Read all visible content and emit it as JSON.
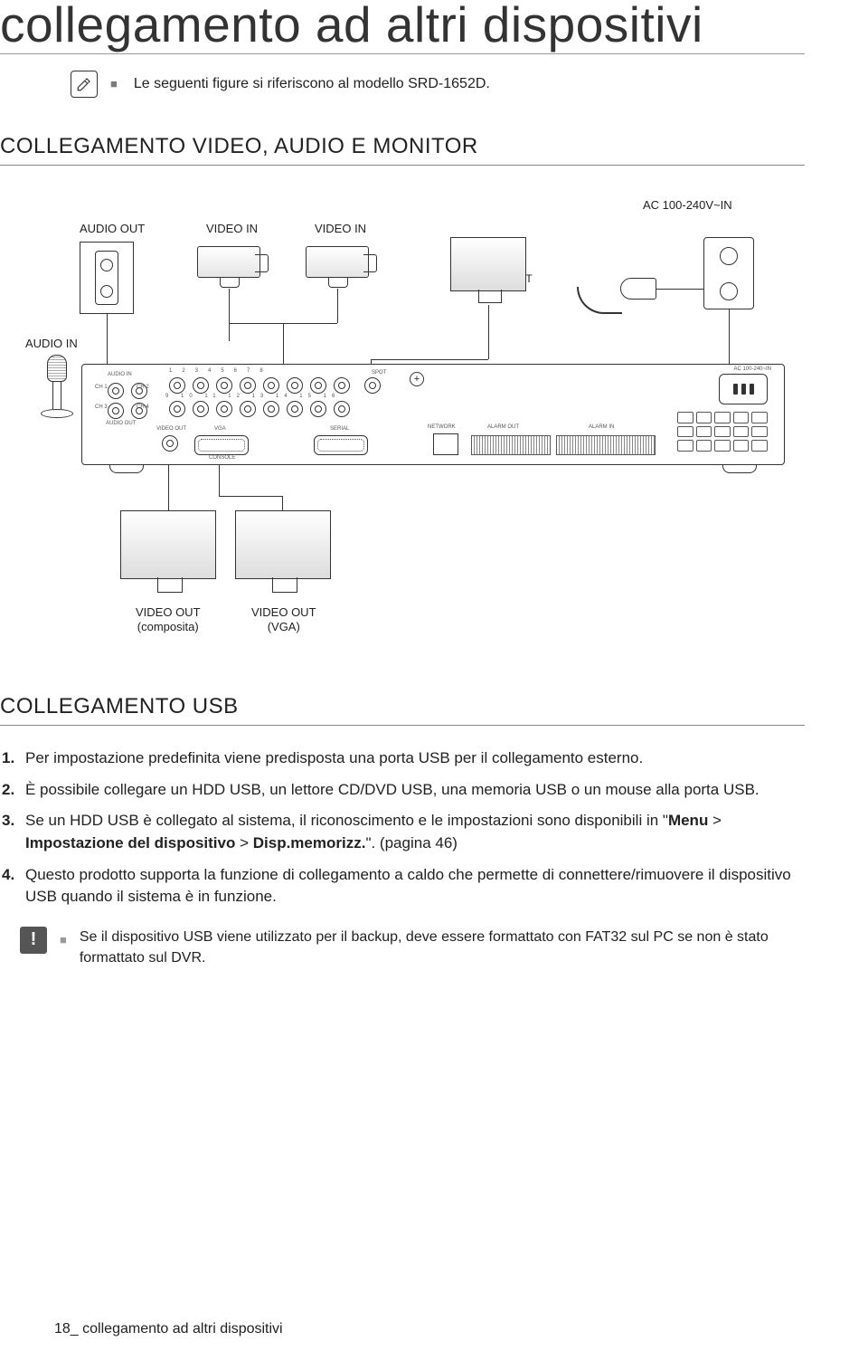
{
  "page": {
    "title": "collegamento ad altri dispositivi",
    "note_text": "Le seguenti figure si riferiscono al modello SRD-1652D.",
    "footer_page": "18_",
    "footer_text": "collegamento ad altri dispositivi"
  },
  "section1": {
    "heading": "COLLEGAMENTO VIDEO, AUDIO E MONITOR",
    "labels": {
      "audio_out": "AUDIO OUT",
      "video_in_1": "VIDEO IN",
      "video_in_2": "VIDEO IN",
      "spot": "SPOT",
      "ac_in": "AC 100-240V~IN",
      "audio_in": "AUDIO IN",
      "video_out_comp_l1": "VIDEO OUT",
      "video_out_comp_l2": "(composita)",
      "video_out_vga_l1": "VIDEO OUT",
      "video_out_vga_l2": "(VGA)"
    },
    "panel_labels": {
      "video_out": "VIDEO OUT",
      "vga": "VGA",
      "console": "CONSOLE",
      "serial": "SERIAL",
      "network": "NETWORK",
      "alarm_out": "ALARM OUT",
      "alarm_in": "ALARM IN",
      "audio_in": "AUDIO IN",
      "audio_out": "AUDIO OUT",
      "ch1": "CH 1",
      "ch2": "CH 2",
      "ch3": "CH 3",
      "ch4": "CH 4",
      "ac": "AC 100-240~IN",
      "spot": "SPOT"
    }
  },
  "section2": {
    "heading": "COLLEGAMENTO USB",
    "items": [
      "Per impostazione predefinita viene predisposta una porta USB per il collegamento esterno.",
      "È possibile collegare un HDD USB, un lettore CD/DVD USB, una memoria USB o un mouse alla porta USB.",
      "Se un HDD USB è collegato al sistema, il riconoscimento e le impostazioni sono disponibili in \"<b>Menu</b> > <b>Impostazione del dispositivo</b> > <b>Disp.memorizz.</b>\". (pagina 46)",
      "Questo prodotto supporta la funzione di collegamento a caldo che permette di connettere/rimuovere il dispositivo USB quando il sistema è in funzione."
    ],
    "alert": "Se il dispositivo USB viene utilizzato per il backup, deve essere formattato con FAT32 sul PC se non è stato formattato sul DVR."
  },
  "colors": {
    "text": "#1a1a1a",
    "rule": "#888888",
    "muted": "#7a7a7a",
    "alert_bg": "#555555"
  }
}
